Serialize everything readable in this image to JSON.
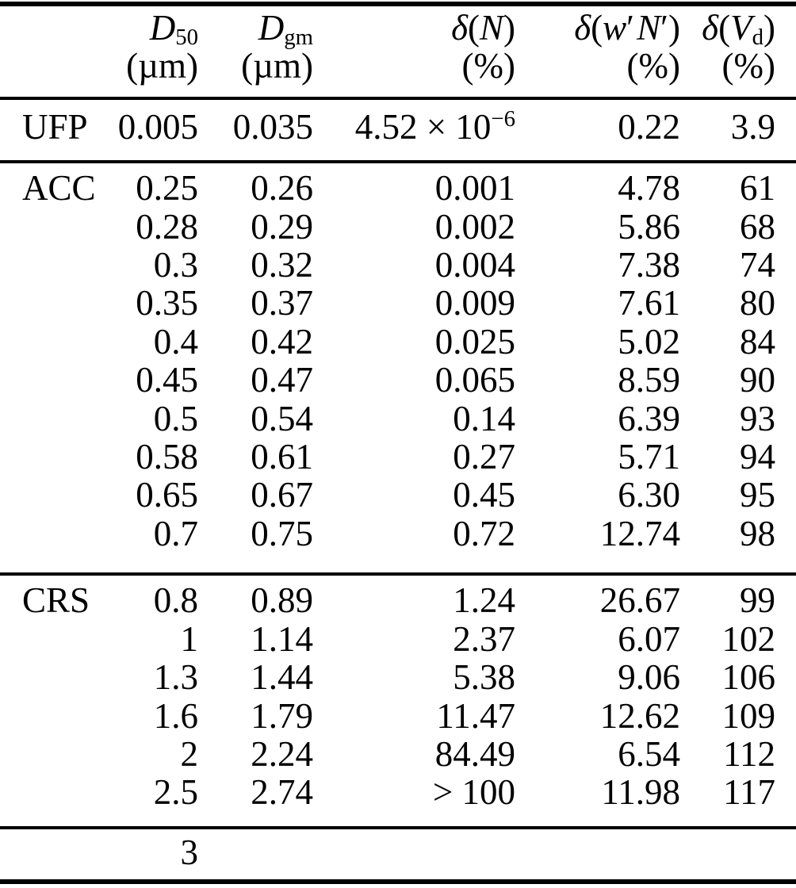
{
  "colors": {
    "background": "#ffffff",
    "ink": "#000000"
  },
  "table": {
    "header": {
      "cols": [
        {
          "base": "D",
          "sub": "50",
          "unit": "(µm)"
        },
        {
          "base": "D",
          "sub": "gm",
          "unit": "(µm)"
        },
        {
          "delta": "δ",
          "open": "(",
          "var": "N",
          "close": ")",
          "unit": "(%)"
        },
        {
          "delta": "δ",
          "open": "(",
          "var1": "w",
          "prime1": "′",
          "var2": "N",
          "prime2": "′",
          "close": ")",
          "unit": "(%)"
        },
        {
          "delta": "δ",
          "open": "(",
          "var": "V",
          "sub": "d",
          "close": ")",
          "unit": "(%)"
        }
      ]
    },
    "sections": [
      {
        "label": "UFP",
        "rows": [
          [
            "UFP",
            "0.005",
            "0.035",
            {
              "mantissa": "4.52 × 10",
              "exponent": "−6"
            },
            "0.22",
            "3.9"
          ]
        ]
      },
      {
        "label": "ACC",
        "rows": [
          [
            "ACC",
            "0.25",
            "0.26",
            "0.001",
            "4.78",
            "61"
          ],
          [
            "",
            "0.28",
            "0.29",
            "0.002",
            "5.86",
            "68"
          ],
          [
            "",
            "0.3",
            "0.32",
            "0.004",
            "7.38",
            "74"
          ],
          [
            "",
            "0.35",
            "0.37",
            "0.009",
            "7.61",
            "80"
          ],
          [
            "",
            "0.4",
            "0.42",
            "0.025",
            "5.02",
            "84"
          ],
          [
            "",
            "0.45",
            "0.47",
            "0.065",
            "8.59",
            "90"
          ],
          [
            "",
            "0.5",
            "0.54",
            "0.14",
            "6.39",
            "93"
          ],
          [
            "",
            "0.58",
            "0.61",
            "0.27",
            "5.71",
            "94"
          ],
          [
            "",
            "0.65",
            "0.67",
            "0.45",
            "6.30",
            "95"
          ],
          [
            "",
            "0.7",
            "0.75",
            "0.72",
            "12.74",
            "98"
          ]
        ]
      },
      {
        "label": "CRS",
        "rows": [
          [
            "CRS",
            "0.8",
            "0.89",
            "1.24",
            "26.67",
            "99"
          ],
          [
            "",
            "1",
            "1.14",
            "2.37",
            "6.07",
            "102"
          ],
          [
            "",
            "1.3",
            "1.44",
            "5.38",
            "9.06",
            "106"
          ],
          [
            "",
            "1.6",
            "1.79",
            "11.47",
            "12.62",
            "109"
          ],
          [
            "",
            "2",
            "2.24",
            "84.49",
            "6.54",
            "112"
          ],
          [
            "",
            "2.5",
            "2.74",
            "> 100",
            "11.98",
            "117"
          ]
        ]
      },
      {
        "label": "",
        "rows": [
          [
            "",
            "3",
            "",
            "",
            "",
            ""
          ]
        ]
      }
    ]
  }
}
